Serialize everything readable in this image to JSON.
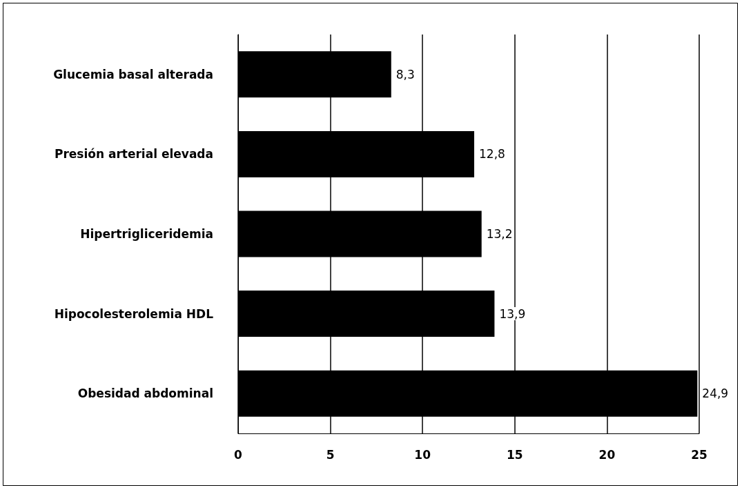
{
  "chart_data": {
    "type": "bar",
    "orientation": "horizontal",
    "categories": [
      "Glucemia basal alterada",
      "Presión arterial elevada",
      "Hipertrigliceridemia",
      "Hipocolesterolemia HDL",
      "Obesidad abdominal"
    ],
    "values": [
      8.3,
      12.8,
      13.2,
      13.9,
      24.9
    ],
    "value_labels": [
      "8,3",
      "12,8",
      "13,2",
      "13,9",
      "24,9"
    ],
    "color": "#000000",
    "xlim": [
      0,
      25
    ],
    "xticks": [
      0,
      5,
      10,
      15,
      20,
      25
    ],
    "grid": "x"
  }
}
